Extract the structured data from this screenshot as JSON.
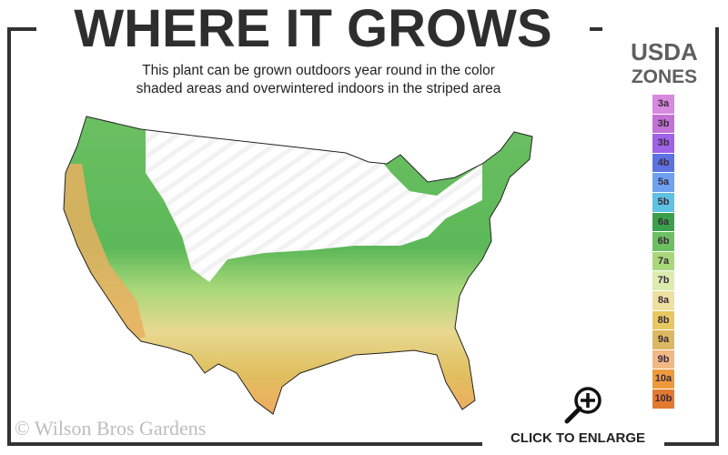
{
  "header": {
    "title": "WHERE IT GROWS",
    "subtitle_line1": "This plant can be grown outdoors year round in the color",
    "subtitle_line2": "shaded areas and overwintered indoors in the striped area"
  },
  "legend": {
    "title_line1": "USDA",
    "title_line2": "ZONES",
    "zones": [
      {
        "label": "3a",
        "color": "#d88ae0"
      },
      {
        "label": "3b",
        "color": "#c272d6"
      },
      {
        "label": "3b",
        "color": "#a062e8"
      },
      {
        "label": "4b",
        "color": "#5c72e2"
      },
      {
        "label": "5a",
        "color": "#6ea2f0"
      },
      {
        "label": "5b",
        "color": "#5ec2e2"
      },
      {
        "label": "6a",
        "color": "#3ca04c"
      },
      {
        "label": "6b",
        "color": "#6cc062"
      },
      {
        "label": "7a",
        "color": "#a8d87a"
      },
      {
        "label": "7b",
        "color": "#dcecae"
      },
      {
        "label": "8a",
        "color": "#eee0a0"
      },
      {
        "label": "8b",
        "color": "#e8c860"
      },
      {
        "label": "9a",
        "color": "#dcb862"
      },
      {
        "label": "9b",
        "color": "#f2b884"
      },
      {
        "label": "10a",
        "color": "#ee9a3a"
      },
      {
        "label": "10b",
        "color": "#e27a30"
      }
    ]
  },
  "footer": {
    "copyright": "© Wilson Bros Gardens",
    "enlarge_label": "CLICK TO ENLARGE",
    "enlarge_icon": "zoom-in-icon"
  }
}
